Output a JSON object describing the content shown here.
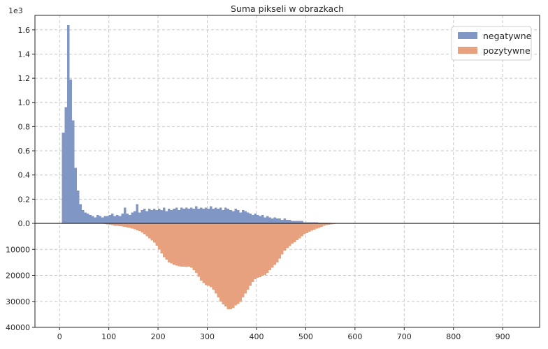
{
  "chart_data": {
    "type": "bar",
    "title": "Suma pikseli w obrazkach",
    "xlabel": "",
    "ylabel": "",
    "x_ticks": [
      "0",
      "100",
      "200",
      "300",
      "400",
      "500",
      "600",
      "700",
      "800",
      "900"
    ],
    "xlim": [
      -50,
      975
    ],
    "top_axis": {
      "multiplier_label": "1e3",
      "ticks": [
        "0.0",
        "0.2",
        "0.4",
        "0.6",
        "0.8",
        "1.0",
        "1.2",
        "1.4",
        "1.6"
      ],
      "ylim": [
        0,
        1.72
      ]
    },
    "bottom_axis": {
      "ticks": [
        "10000",
        "20000",
        "30000",
        "40000"
      ],
      "ylim": [
        0,
        40000
      ]
    },
    "grid": true,
    "legend_position": "top-right",
    "bin_width": 5,
    "series": [
      {
        "name": "negatywne",
        "color": "#8096c4",
        "panel": "top",
        "unit_note": "values in 1e3",
        "x": [
          5,
          10,
          15,
          20,
          25,
          30,
          35,
          40,
          45,
          50,
          55,
          60,
          65,
          70,
          75,
          80,
          85,
          90,
          95,
          100,
          105,
          110,
          115,
          120,
          125,
          130,
          135,
          140,
          145,
          150,
          155,
          160,
          165,
          170,
          175,
          180,
          185,
          190,
          195,
          200,
          205,
          210,
          215,
          220,
          225,
          230,
          235,
          240,
          245,
          250,
          255,
          260,
          265,
          270,
          275,
          280,
          285,
          290,
          295,
          300,
          305,
          310,
          315,
          320,
          325,
          330,
          335,
          340,
          345,
          350,
          355,
          360,
          365,
          370,
          375,
          380,
          385,
          390,
          395,
          400,
          405,
          410,
          415,
          420,
          425,
          430,
          435,
          440,
          445,
          450,
          455,
          460,
          465,
          470,
          475,
          480,
          485,
          490,
          495,
          500,
          505,
          510,
          515,
          520,
          525,
          530,
          535,
          540,
          545,
          550,
          555,
          560,
          565,
          570,
          575,
          580,
          585,
          590,
          595,
          600
        ],
        "values": [
          0.75,
          0.96,
          1.64,
          1.19,
          0.85,
          0.46,
          0.27,
          0.16,
          0.11,
          0.09,
          0.08,
          0.07,
          0.06,
          0.05,
          0.07,
          0.06,
          0.05,
          0.06,
          0.06,
          0.07,
          0.08,
          0.06,
          0.07,
          0.06,
          0.08,
          0.13,
          0.08,
          0.07,
          0.09,
          0.1,
          0.16,
          0.09,
          0.11,
          0.12,
          0.1,
          0.12,
          0.11,
          0.12,
          0.11,
          0.12,
          0.11,
          0.13,
          0.1,
          0.12,
          0.11,
          0.12,
          0.13,
          0.11,
          0.13,
          0.12,
          0.13,
          0.12,
          0.13,
          0.12,
          0.14,
          0.12,
          0.13,
          0.12,
          0.13,
          0.12,
          0.14,
          0.12,
          0.13,
          0.12,
          0.13,
          0.11,
          0.13,
          0.12,
          0.11,
          0.1,
          0.12,
          0.11,
          0.09,
          0.11,
          0.1,
          0.09,
          0.08,
          0.07,
          0.08,
          0.07,
          0.06,
          0.07,
          0.05,
          0.06,
          0.05,
          0.04,
          0.05,
          0.04,
          0.04,
          0.03,
          0.04,
          0.03,
          0.03,
          0.02,
          0.02,
          0.02,
          0.02,
          0.02,
          0.01,
          0.01,
          0.01,
          0.01,
          0.01,
          0.01,
          0.005,
          0.005,
          0.005,
          0.005,
          0.005,
          0.003,
          0.003,
          0.003,
          0.002,
          0.002,
          0.002,
          0.001,
          0.001,
          0.001,
          0.001,
          0.001
        ]
      },
      {
        "name": "pozytywne",
        "color": "#e8a17f",
        "panel": "bottom",
        "x": [
          80,
          85,
          90,
          95,
          100,
          105,
          110,
          115,
          120,
          125,
          130,
          135,
          140,
          145,
          150,
          155,
          160,
          165,
          170,
          175,
          180,
          185,
          190,
          195,
          200,
          205,
          210,
          215,
          220,
          225,
          230,
          235,
          240,
          245,
          250,
          255,
          260,
          265,
          270,
          275,
          280,
          285,
          290,
          295,
          300,
          305,
          310,
          315,
          320,
          325,
          330,
          335,
          340,
          345,
          350,
          355,
          360,
          365,
          370,
          375,
          380,
          385,
          390,
          395,
          400,
          405,
          410,
          415,
          420,
          425,
          430,
          435,
          440,
          445,
          450,
          455,
          460,
          465,
          470,
          475,
          480,
          485,
          490,
          495,
          500,
          505,
          510,
          515,
          520,
          525,
          530,
          535,
          540,
          545,
          550,
          555,
          560,
          565,
          570,
          575,
          580,
          585,
          590,
          595,
          600,
          605,
          610,
          615,
          620,
          625,
          630,
          635,
          640,
          645
        ],
        "values": [
          150,
          200,
          300,
          400,
          550,
          700,
          900,
          1000,
          1100,
          1250,
          1400,
          1600,
          1800,
          2000,
          2300,
          2700,
          3000,
          3500,
          4200,
          5000,
          5800,
          6600,
          7400,
          8600,
          10000,
          11500,
          13000,
          14000,
          15000,
          15500,
          16000,
          16300,
          16500,
          16600,
          16700,
          16800,
          16600,
          17000,
          18000,
          19000,
          20500,
          22000,
          23000,
          23700,
          24000,
          24500,
          25500,
          27000,
          28500,
          30000,
          31200,
          32000,
          33000,
          33000,
          32500,
          31500,
          31000,
          30200,
          28500,
          27000,
          25500,
          24000,
          22500,
          21500,
          21000,
          20700,
          20200,
          19800,
          19000,
          18000,
          17000,
          16000,
          15000,
          13500,
          12000,
          10500,
          9500,
          8700,
          7800,
          7200,
          6500,
          5800,
          5000,
          4200,
          3800,
          3200,
          2800,
          2400,
          2000,
          1700,
          1300,
          1000,
          700,
          500,
          350,
          250,
          200,
          150,
          120,
          100,
          80,
          60,
          40,
          30,
          20,
          10,
          8,
          6,
          4,
          3,
          2,
          1,
          1,
          1
        ]
      }
    ]
  }
}
